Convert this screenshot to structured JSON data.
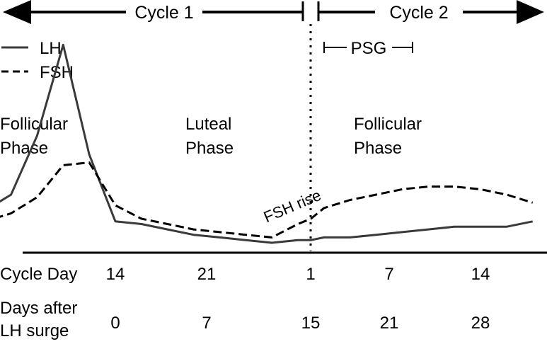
{
  "chart_data": {
    "type": "line",
    "cycles": {
      "cycle1_label": "Cycle 1",
      "cycle2_label": "Cycle 2"
    },
    "psg_label": "PSG",
    "legend": {
      "placement": "top-left",
      "lh_label": "LH",
      "fsh_label": "FSH"
    },
    "phases": [
      {
        "line1": "Follicular",
        "line2": "Phase"
      },
      {
        "line1": "Luteal",
        "line2": "Phase"
      },
      {
        "line1": "Follicular",
        "line2": "Phase"
      }
    ],
    "annotation": "FSH rise",
    "row1": {
      "label": "Cycle Day",
      "ticks": [
        "14",
        "21",
        "1",
        "7",
        "14"
      ]
    },
    "row2": {
      "label_line1": "Days after",
      "label_line2": "LH surge",
      "ticks": [
        "0",
        "7",
        "15",
        "21",
        "28"
      ]
    },
    "x_unit": "days after LH surge",
    "y_unit": "relative hormone level",
    "xlim": [
      -14,
      32
    ],
    "ylim": [
      0,
      100
    ],
    "grid": false,
    "series": [
      {
        "name": "LH",
        "style": "solid",
        "color": "#3a3a3a",
        "x": [
          -14,
          -12,
          -10,
          -8,
          -6,
          -4,
          -2,
          0,
          2,
          4,
          6,
          8,
          10,
          12,
          14,
          15,
          16,
          18,
          20,
          22,
          24,
          26,
          28,
          30,
          32
        ],
        "y": [
          8,
          9,
          12,
          18,
          40,
          74,
          33,
          8,
          7,
          5,
          3,
          2,
          1,
          0,
          1,
          1,
          2,
          2,
          3,
          4,
          5,
          6,
          6,
          6,
          8
        ]
      },
      {
        "name": "FSH",
        "style": "dashed",
        "color": "#000000",
        "x": [
          -14,
          -12,
          -10,
          -8,
          -6,
          -4,
          -2,
          0,
          2,
          4,
          6,
          8,
          10,
          12,
          14,
          15,
          16,
          18,
          20,
          22,
          24,
          26,
          28,
          30,
          32
        ],
        "y": [
          12,
          10,
          8,
          11,
          17,
          29,
          30,
          14,
          9,
          7,
          5,
          4,
          3,
          2,
          7,
          9,
          13,
          16,
          18,
          20,
          21,
          21,
          20,
          18,
          15
        ]
      }
    ]
  }
}
